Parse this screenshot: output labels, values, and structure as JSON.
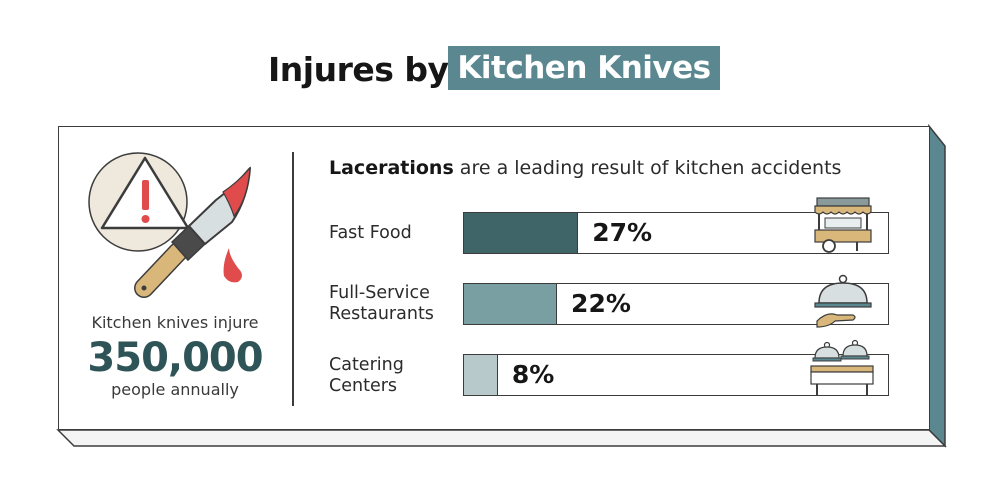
{
  "title": {
    "prefix": "Injures by",
    "highlight": "Kitchen Knives"
  },
  "stat": {
    "lead": "Kitchen knives injure",
    "number": "350,000",
    "tail": "people annually"
  },
  "subtitle": {
    "bold": "Lacerations",
    "rest": " are a leading result of kitchen accidents"
  },
  "colors": {
    "accent": "#5b8890",
    "bar1": "#3f6569",
    "bar2": "#7a9fa3",
    "bar3": "#b7c9cb",
    "blood": "#e04b4b",
    "tan": "#d9b77a"
  },
  "chart_data": {
    "type": "bar",
    "orientation": "horizontal",
    "title": "Injures by Kitchen Knives",
    "subtitle": "Lacerations are a leading result of kitchen accidents",
    "categories": [
      "Fast Food",
      "Full-Service Restaurants",
      "Catering Centers"
    ],
    "category_labels": [
      "Fast Food",
      "Full-Service\nRestaurants",
      "Catering\nCenters"
    ],
    "values": [
      27,
      22,
      8
    ],
    "value_labels": [
      "27%",
      "22%",
      "8%"
    ],
    "unit": "%",
    "xlim": [
      0,
      100
    ],
    "icons": [
      "food-cart-icon",
      "serving-cloche-icon",
      "buffet-table-icon"
    ]
  }
}
